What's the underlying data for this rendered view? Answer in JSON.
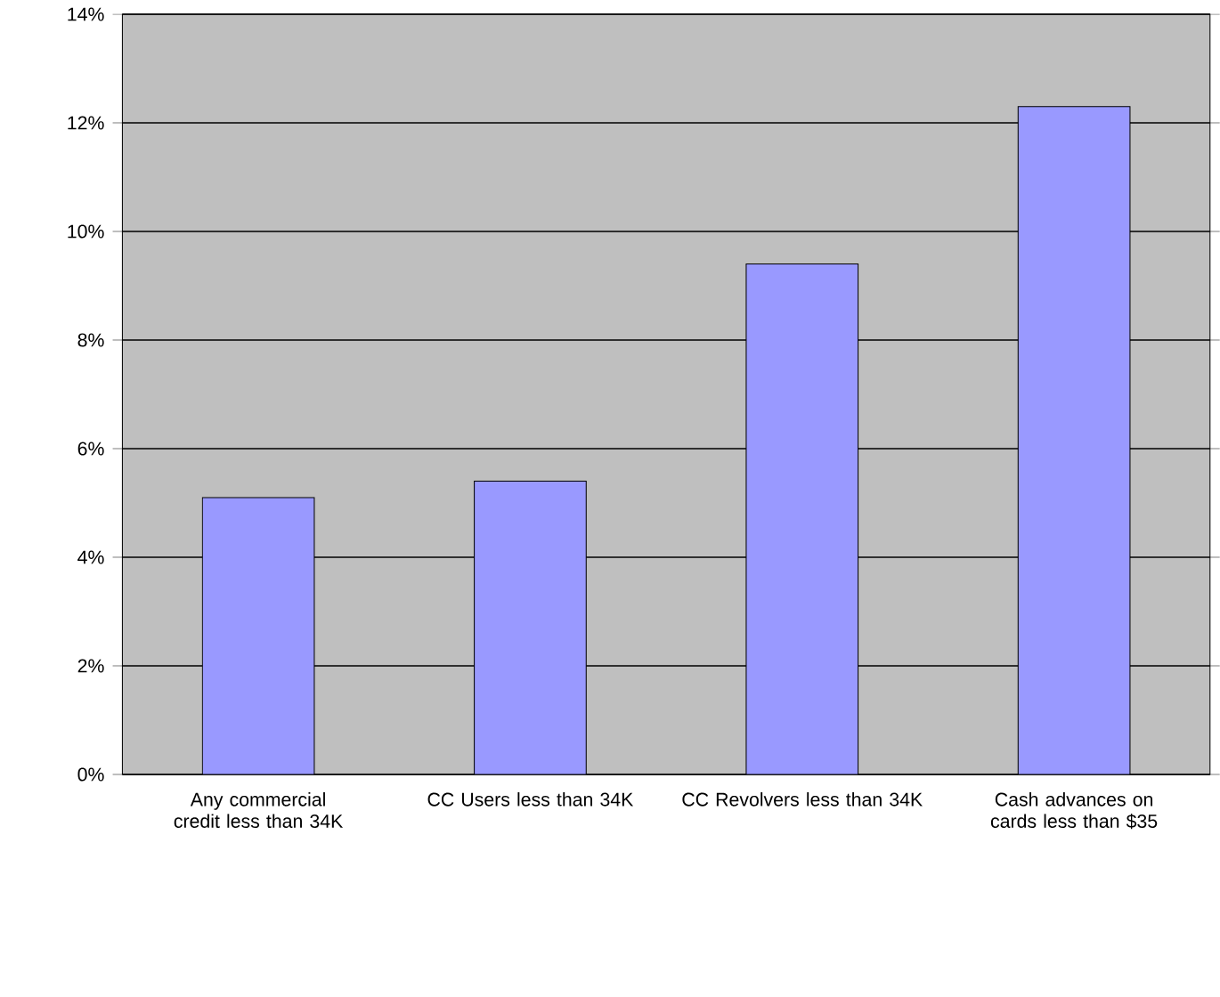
{
  "chart_data": {
    "type": "bar",
    "categories": [
      "Any commercial credit less than 34K",
      "CC Users less than 34K",
      "CC Revolvers less than 34K",
      "Cash advances on cards less than $35"
    ],
    "values": [
      5.1,
      5.4,
      9.4,
      12.3
    ],
    "color": "#9999ff",
    "ylim": [
      0,
      14
    ],
    "yticks": [
      {
        "value": 0,
        "label": "0%"
      },
      {
        "value": 2,
        "label": "2%"
      },
      {
        "value": 4,
        "label": "4%"
      },
      {
        "value": 6,
        "label": "6%"
      },
      {
        "value": 8,
        "label": "8%"
      },
      {
        "value": 10,
        "label": "10%"
      },
      {
        "value": 12,
        "label": "12%"
      },
      {
        "value": 14,
        "label": "14%"
      }
    ],
    "grid": "y"
  }
}
